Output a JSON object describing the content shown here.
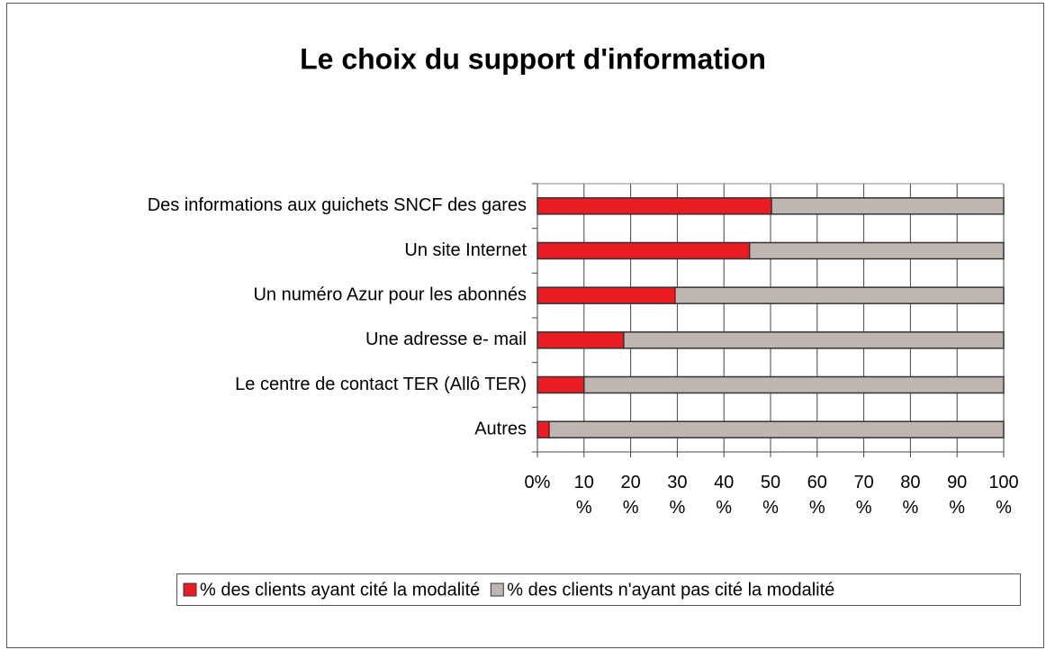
{
  "chart_data": {
    "type": "bar",
    "orientation": "horizontal",
    "stacked": true,
    "title": "Le choix du support d'information",
    "categories": [
      "Des informations aux guichets SNCF des gares",
      "Un site Internet",
      "Un numéro Azur pour les abonnés",
      "Une adresse e- mail",
      "Le centre de contact TER (Allô TER)",
      "Autres"
    ],
    "series": [
      {
        "name": "% des clients ayant cité la modalité",
        "color": "#ec1c24",
        "values": [
          50.2,
          45.5,
          29.5,
          18.5,
          10,
          2.5
        ]
      },
      {
        "name": "% des clients n'ayant pas cité la modalité",
        "color": "#c0b6b1",
        "values": [
          49.8,
          54.5,
          70.5,
          81.5,
          90,
          97.5
        ]
      }
    ],
    "xlim": [
      0,
      100
    ],
    "xticks": [
      {
        "value": 0,
        "label": "0%"
      },
      {
        "value": 10,
        "label": "10 %"
      },
      {
        "value": 20,
        "label": "20 %"
      },
      {
        "value": 30,
        "label": "30 %"
      },
      {
        "value": 40,
        "label": "40 %"
      },
      {
        "value": 50,
        "label": "50 %"
      },
      {
        "value": 60,
        "label": "60 %"
      },
      {
        "value": 70,
        "label": "70 %"
      },
      {
        "value": 80,
        "label": "80 %"
      },
      {
        "value": 90,
        "label": "90 %"
      },
      {
        "value": 100,
        "label": "100 %"
      }
    ],
    "grid": true,
    "legend": "bottom"
  }
}
